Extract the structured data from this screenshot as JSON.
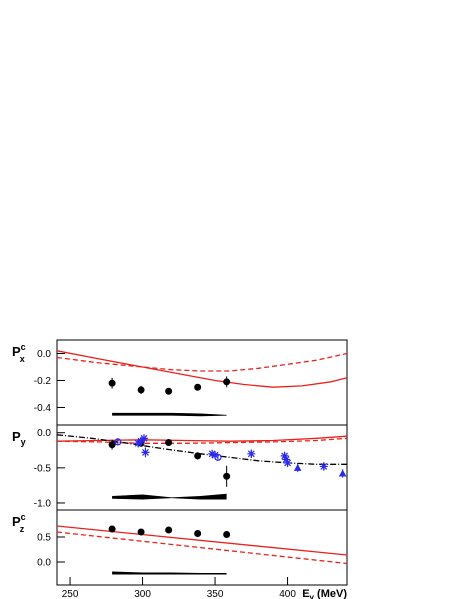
{
  "chart_data": [
    {
      "type": "line",
      "ylabel": {
        "main": "P",
        "sub": "x",
        "sup": "c"
      },
      "xlim": [
        241,
        441
      ],
      "ylim": [
        -0.53,
        0.1
      ],
      "yticks": [
        {
          "value": 0.0,
          "label": "0.0"
        },
        -0.2,
        -0.4
      ],
      "series": [
        {
          "kind": "line",
          "style": "solid",
          "color": "#e8221c",
          "x": [
            241,
            270,
            300,
            330,
            350,
            370,
            390,
            410,
            430,
            441
          ],
          "values": [
            0.02,
            -0.04,
            -0.1,
            -0.16,
            -0.2,
            -0.23,
            -0.25,
            -0.24,
            -0.21,
            -0.18
          ]
        },
        {
          "kind": "line",
          "style": "dashed",
          "color": "#e8221c",
          "x": [
            241,
            270,
            300,
            320,
            340,
            360,
            380,
            400,
            420,
            441
          ],
          "values": [
            -0.03,
            -0.07,
            -0.1,
            -0.12,
            -0.13,
            -0.13,
            -0.11,
            -0.08,
            -0.05,
            0.0
          ]
        },
        {
          "kind": "points",
          "marker": "circle",
          "color": "#000000",
          "x": [
            279,
            299,
            318,
            338,
            358
          ],
          "values": [
            -0.22,
            -0.27,
            -0.28,
            -0.25,
            -0.21
          ],
          "errors": [
            0.04,
            0.03,
            0.02,
            0.02,
            0.04
          ]
        },
        {
          "kind": "band",
          "color": "#000000",
          "x": [
            279,
            300,
            320,
            340,
            358
          ],
          "lower": [
            -0.46,
            -0.46,
            -0.46,
            -0.465,
            -0.46
          ],
          "upper": [
            -0.44,
            -0.44,
            -0.44,
            -0.445,
            -0.455
          ]
        }
      ]
    },
    {
      "type": "line",
      "ylabel": {
        "main": "P",
        "sub": "y",
        "sup": null
      },
      "xlim": [
        241,
        441
      ],
      "ylim": [
        -1.1,
        0.11
      ],
      "yticks": [
        {
          "value": 0.0,
          "label": "0.0"
        },
        -0.5,
        {
          "value": -1.0,
          "label": "-1.0"
        }
      ],
      "series": [
        {
          "kind": "line",
          "style": "solid",
          "color": "#e8221c",
          "x": [
            241,
            270,
            300,
            330,
            360,
            390,
            420,
            441
          ],
          "values": [
            -0.12,
            -0.11,
            -0.1,
            -0.11,
            -0.12,
            -0.11,
            -0.08,
            -0.05
          ]
        },
        {
          "kind": "line",
          "style": "dashed",
          "color": "#e8221c",
          "x": [
            241,
            270,
            300,
            330,
            360,
            390,
            420,
            441
          ],
          "values": [
            -0.12,
            -0.13,
            -0.15,
            -0.15,
            -0.14,
            -0.13,
            -0.11,
            -0.08
          ]
        },
        {
          "kind": "line",
          "style": "dashdot",
          "color": "#000000",
          "x": [
            241,
            265,
            290,
            315,
            340,
            360,
            380,
            400,
            420,
            441
          ],
          "values": [
            -0.03,
            -0.08,
            -0.15,
            -0.23,
            -0.3,
            -0.35,
            -0.4,
            -0.43,
            -0.45,
            -0.45
          ]
        },
        {
          "kind": "points",
          "marker": "circle",
          "color": "#000000",
          "x": [
            279,
            299,
            318,
            338,
            358
          ],
          "values": [
            -0.17,
            -0.15,
            -0.14,
            -0.33,
            -0.62
          ],
          "errors": [
            0.07,
            0.05,
            0.04,
            0.05,
            0.15
          ]
        },
        {
          "kind": "points",
          "marker": "star",
          "color": "#2a2ae8",
          "x": [
            297,
            299,
            301,
            302,
            348,
            350,
            375,
            398,
            399,
            400,
            425
          ],
          "values": [
            -0.15,
            -0.12,
            -0.08,
            -0.28,
            -0.3,
            -0.32,
            -0.3,
            -0.33,
            -0.38,
            -0.43,
            -0.48
          ],
          "errors": [
            0.06,
            0.06,
            0.06,
            0.07,
            0.05,
            0.05,
            0.06,
            0.06,
            0.06,
            0.06,
            0.06
          ]
        },
        {
          "kind": "points",
          "marker": "triangle",
          "color": "#2a2ae8",
          "x": [
            407,
            438
          ],
          "values": [
            -0.5,
            -0.58
          ],
          "errors": [
            0.06,
            0.06
          ]
        },
        {
          "kind": "points",
          "marker": "open",
          "color": "#2a2ae8",
          "x": [
            283,
            352
          ],
          "values": [
            -0.13,
            -0.35
          ],
          "errors": [
            0.05,
            0.05
          ]
        },
        {
          "kind": "band",
          "color": "#000000",
          "x": [
            279,
            300,
            320,
            340,
            358
          ],
          "lower": [
            -0.94,
            -0.95,
            -0.93,
            -0.95,
            -0.95
          ],
          "upper": [
            -0.9,
            -0.88,
            -0.92,
            -0.9,
            -0.87
          ]
        }
      ]
    },
    {
      "type": "line",
      "ylabel": {
        "main": "P",
        "sub": "z",
        "sup": "c"
      },
      "xlim": [
        241,
        441
      ],
      "ylim": [
        -0.46,
        1.04
      ],
      "yticks": [
        0.5,
        {
          "value": 0.0,
          "label": "0.0"
        }
      ],
      "xticks": [
        250,
        300,
        350,
        400
      ],
      "xlabel": {
        "main": "E",
        "sub": "γ",
        "rest": " (MeV)"
      },
      "series": [
        {
          "kind": "line",
          "style": "solid",
          "color": "#e8221c",
          "x": [
            241,
            441
          ],
          "values": [
            0.72,
            0.14
          ]
        },
        {
          "kind": "line",
          "style": "dashed",
          "color": "#e8221c",
          "x": [
            241,
            441
          ],
          "values": [
            0.6,
            -0.03
          ]
        },
        {
          "kind": "points",
          "marker": "circle",
          "color": "#000000",
          "x": [
            279,
            299,
            318,
            338,
            358
          ],
          "values": [
            0.66,
            0.6,
            0.64,
            0.57,
            0.55
          ],
          "errors": [
            0.03,
            0.03,
            0.03,
            0.03,
            0.03
          ]
        },
        {
          "kind": "band",
          "color": "#000000",
          "x": [
            279,
            300,
            320,
            340,
            358
          ],
          "lower": [
            -0.25,
            -0.25,
            -0.25,
            -0.25,
            -0.25
          ],
          "upper": [
            -0.19,
            -0.21,
            -0.21,
            -0.22,
            -0.22
          ]
        }
      ]
    }
  ]
}
